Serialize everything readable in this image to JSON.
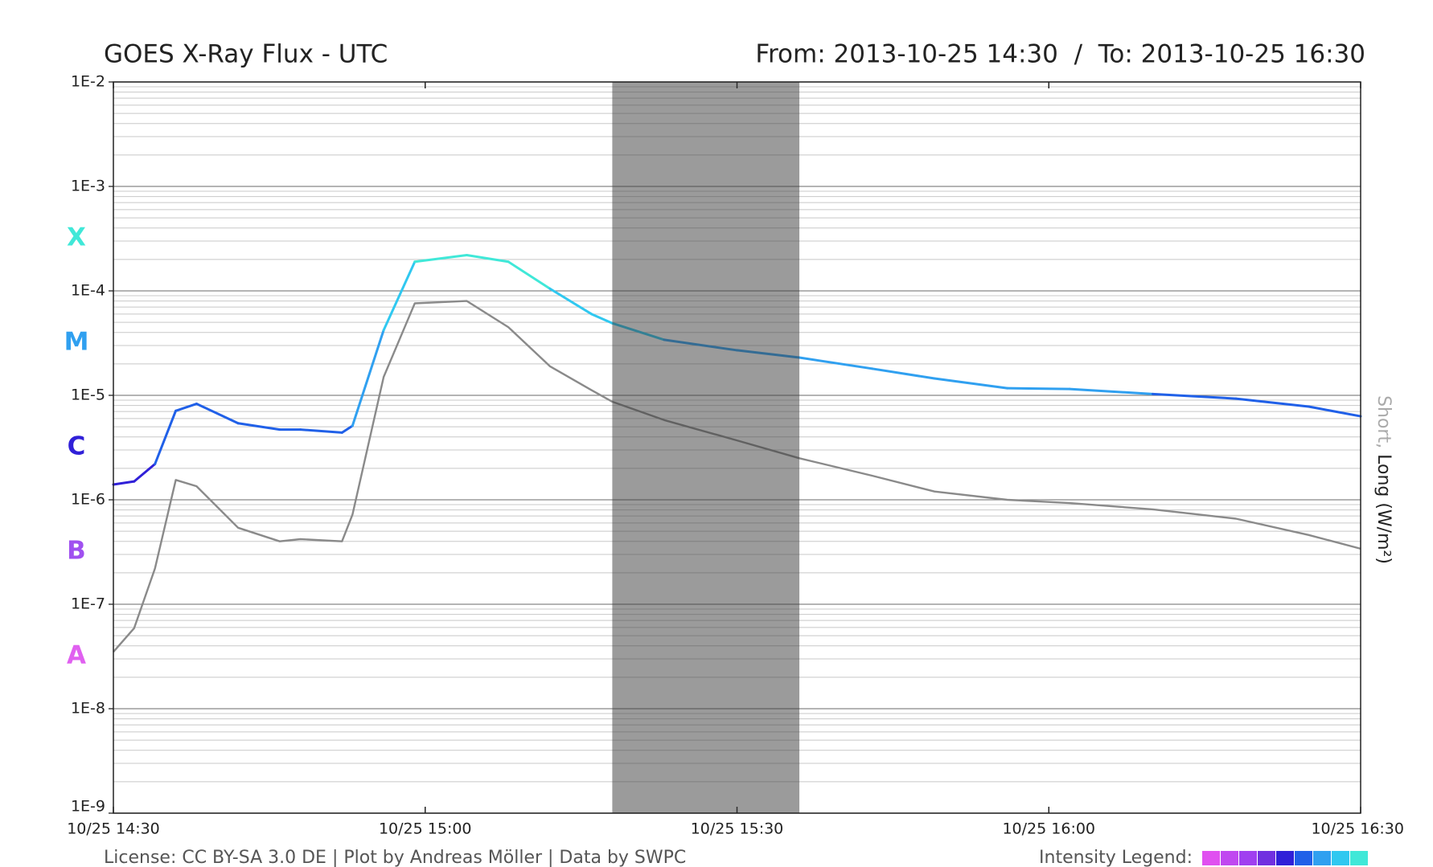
{
  "chart_data": {
    "type": "line",
    "title": "GOES X-Ray Flux - UTC",
    "subtitle": "From: 2013-10-25 14:30  /  To: 2013-10-25 16:30",
    "footer": "License: CC BY-SA 3.0 DE | Plot by Andreas Möller | Data by SWPC",
    "ylabel": "(W/m²)",
    "log_y": true,
    "grid": true,
    "minor_grid": true,
    "x": [
      "10/25 14:30",
      "10/25 14:32",
      "10/25 14:34",
      "10/25 14:36",
      "10/25 14:38",
      "10/25 14:42",
      "10/25 14:46",
      "10/25 14:48",
      "10/25 14:52",
      "10/25 14:53",
      "10/25 14:56",
      "10/25 14:59",
      "10/25 15:04",
      "10/25 15:08",
      "10/25 15:12",
      "10/25 15:16",
      "10/25 15:18",
      "10/25 15:23",
      "10/25 15:30",
      "10/25 15:36",
      "10/25 15:43",
      "10/25 15:49",
      "10/25 15:56",
      "10/25 16:02",
      "10/25 16:10",
      "10/25 16:18",
      "10/25 16:25",
      "10/25 16:30"
    ],
    "series": [
      {
        "name": "Short,",
        "color": "#8a8a8a",
        "values": [
          3.5e-08,
          5.9e-08,
          2.2e-07,
          1.55e-06,
          1.35e-06,
          5.4e-07,
          4e-07,
          4.2e-07,
          4e-07,
          7.2e-07,
          1.5e-05,
          7.6e-05,
          8e-05,
          4.5e-05,
          1.9e-05,
          1.12e-05,
          8.7e-06,
          5.8e-06,
          3.7e-06,
          2.5e-06,
          1.7e-06,
          1.2e-06,
          1e-06,
          9.3e-07,
          8.1e-07,
          6.6e-07,
          4.6e-07,
          3.4e-07
        ]
      },
      {
        "name": "Long",
        "color": "#222222",
        "values": [
          1.4e-06,
          1.5e-06,
          2.2e-06,
          7.1e-06,
          8.3e-06,
          5.4e-06,
          4.7e-06,
          4.7e-06,
          4.4e-06,
          5.1e-06,
          4.2e-05,
          0.00019,
          0.00022,
          0.00019,
          0.000105,
          6e-05,
          4.9e-05,
          3.4e-05,
          2.7e-05,
          2.3e-05,
          1.8e-05,
          1.45e-05,
          1.17e-05,
          1.15e-05,
          1.03e-05,
          9.3e-06,
          7.8e-06,
          6.3e-06
        ]
      }
    ],
    "xlim": [
      "10/25 14:30",
      "10/25 16:30"
    ],
    "xticks": [
      "10/25 14:30",
      "10/25 15:00",
      "10/25 15:30",
      "10/25 16:00",
      "10/25 16:30"
    ],
    "ylim": [
      1e-09,
      0.01
    ],
    "yticks": [
      {
        "value": 1e-09,
        "label": "1E-9"
      },
      {
        "value": 1e-08,
        "label": "1E-8"
      },
      {
        "value": 1e-07,
        "label": "1E-7"
      },
      {
        "value": 1e-06,
        "label": "1E-6"
      },
      {
        "value": 1e-05,
        "label": "1E-5"
      },
      {
        "value": 0.0001,
        "label": "1E-4"
      },
      {
        "value": 0.001,
        "label": "1E-3"
      },
      {
        "value": 0.01,
        "label": "1E-2"
      }
    ],
    "classes": [
      {
        "label": "A",
        "value": 1e-08,
        "color": "#e060f0"
      },
      {
        "label": "B",
        "value": 1e-07,
        "color": "#a050f0"
      },
      {
        "label": "C",
        "value": 1e-06,
        "color": "#3020d8"
      },
      {
        "label": "M",
        "value": 1e-05,
        "color": "#30a0f0"
      },
      {
        "label": "X",
        "value": 0.0001,
        "color": "#40e8d8"
      }
    ],
    "shaded_span": [
      "10/25 15:18",
      "10/25 15:36"
    ],
    "intensity_legend": {
      "label": "Intensity Legend:",
      "base": 1e-08,
      "colors": [
        "#e050f0",
        "#c048f0",
        "#a040f0",
        "#7030e0",
        "#3020d8",
        "#2060e8",
        "#30a0f0",
        "#30c8f0",
        "#40e8d8"
      ]
    }
  }
}
